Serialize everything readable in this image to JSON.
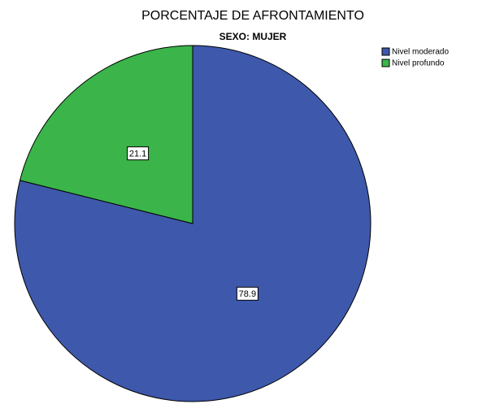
{
  "chart_data": {
    "type": "pie",
    "title": "PORCENTAJE DE AFRONTAMIENTO",
    "subtitle": "SEXO: MUJER",
    "categories": [
      "Nivel moderado",
      "Nivel profundo"
    ],
    "values": [
      78.9,
      21.1
    ],
    "colors": [
      "#3e58ac",
      "#3bb54a"
    ],
    "legend": "top-right"
  }
}
